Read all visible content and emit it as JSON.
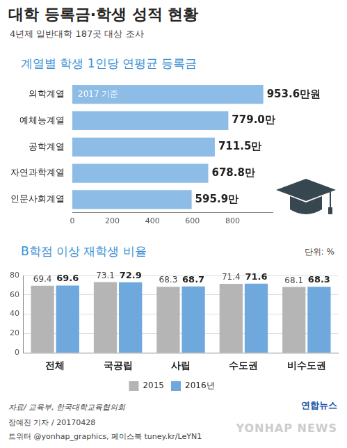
{
  "header": {
    "title": "대학 등록금·학생 성적 현황",
    "subtitle": "4년제 일반대학 187곳 대상 조사"
  },
  "chart_data": [
    {
      "type": "bar",
      "title": "계열별 학생 1인당 연평균 등록금",
      "annotation": "2017 기준",
      "orientation": "horizontal",
      "categories": [
        "의학계열",
        "예체능계열",
        "공학계열",
        "자연과학계열",
        "인문사회계열"
      ],
      "values": [
        953.6,
        779.0,
        711.5,
        678.8,
        595.9
      ],
      "value_labels": [
        "953.6만원",
        "779.0만",
        "711.5만",
        "678.8만",
        "595.9만"
      ],
      "color": "#8dbce6",
      "xlim": [
        0,
        1000
      ],
      "xticks": [
        0,
        200,
        400,
        600,
        800
      ],
      "grid": false,
      "data_labels": true
    },
    {
      "type": "bar",
      "title": "B학점 이상 재학생 비율",
      "annotation": "단위: %",
      "categories": [
        "전체",
        "국공립",
        "사립",
        "수도권",
        "비수도권"
      ],
      "series": [
        {
          "name": "2015",
          "color": "#b5b5b5",
          "values": [
            69.4,
            73.1,
            68.3,
            71.4,
            68.1
          ]
        },
        {
          "name": "2016년",
          "color": "#6fa8dc",
          "values": [
            69.6,
            72.9,
            68.7,
            71.6,
            68.3
          ]
        }
      ],
      "ylim": [
        0,
        80
      ],
      "yticks": [
        0,
        20,
        40,
        60,
        80
      ],
      "grid": true,
      "data_labels": true,
      "legend": "bottom"
    }
  ],
  "footer": {
    "source": "자료/ 교육부, 한국대학교육협의회",
    "logo": "연합뉴스",
    "byline": "장예진 기자 / 20170428",
    "social": "트위터 @yonhap_graphics, 페이스북 tuney.kr/LeYN1",
    "watermark": "YONHAP NEWS"
  }
}
